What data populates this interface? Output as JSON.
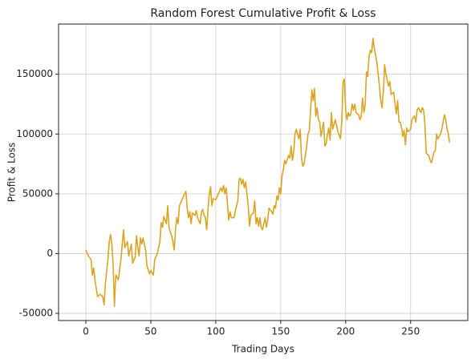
{
  "chart_data": {
    "type": "line",
    "title": "Random Forest Cumulative Profit & Loss",
    "x_label": "Trading Days",
    "y_label": "Profit & Loss",
    "color": "#daa520",
    "grid": true,
    "xlim": [
      -21,
      294
    ],
    "ylim": [
      -56000,
      192000
    ],
    "xticks": [
      0,
      50,
      100,
      150,
      200,
      250
    ],
    "yticks": [
      -50000,
      0,
      50000,
      100000,
      150000
    ],
    "x": [
      0,
      2,
      4,
      5,
      6,
      7,
      9,
      11,
      13,
      14,
      15,
      17,
      18,
      19,
      20,
      21,
      22,
      23,
      25,
      27,
      29,
      30,
      32,
      33,
      35,
      36,
      38,
      39,
      40,
      41,
      42,
      43,
      44,
      46,
      47,
      49,
      50,
      52,
      53,
      55,
      57,
      58,
      59,
      60,
      62,
      63,
      64,
      65,
      66,
      67,
      68,
      69,
      70,
      71,
      72,
      74,
      76,
      77,
      78,
      79,
      80,
      81,
      82,
      84,
      85,
      86,
      88,
      89,
      90,
      91,
      92,
      93,
      94,
      95,
      96,
      97,
      98,
      100,
      102,
      104,
      105,
      106,
      107,
      108,
      110,
      111,
      112,
      114,
      115,
      116,
      117,
      118,
      119,
      120,
      121,
      122,
      123,
      124,
      125,
      126,
      127,
      129,
      130,
      131,
      132,
      133,
      134,
      135,
      136,
      137,
      138,
      139,
      140,
      141,
      143,
      144,
      145,
      146,
      147,
      148,
      149,
      150,
      151,
      152,
      153,
      154,
      156,
      157,
      158,
      159,
      160,
      161,
      162,
      163,
      164,
      165,
      166,
      167,
      168,
      170,
      171,
      172,
      173,
      174,
      175,
      176,
      177,
      178,
      179,
      180,
      181,
      183,
      184,
      185,
      186,
      187,
      188,
      189,
      190,
      191,
      192,
      193,
      194,
      196,
      197,
      198,
      199,
      200,
      201,
      202,
      203,
      204,
      205,
      206,
      207,
      208,
      210,
      211,
      212,
      213,
      214,
      215,
      216,
      217,
      218,
      219,
      220,
      221,
      222,
      224,
      225,
      226,
      227,
      228,
      229,
      230,
      231,
      232,
      233,
      234,
      235,
      237,
      238,
      239,
      240,
      241,
      242,
      243,
      244,
      245,
      246,
      247,
      248,
      250,
      251,
      252,
      253,
      254,
      255,
      256,
      258,
      259,
      260,
      261,
      262,
      264,
      265,
      266,
      267,
      268,
      269,
      270,
      271,
      272,
      273,
      274,
      275,
      276,
      277,
      278,
      279,
      280
    ],
    "values": [
      3000,
      -2000,
      -5000,
      -18000,
      -12000,
      -22000,
      -36000,
      -34000,
      -36000,
      -43000,
      -25000,
      -5000,
      10000,
      16000,
      8000,
      -10000,
      -44000,
      -18000,
      -22000,
      -5000,
      20000,
      5000,
      10000,
      -2000,
      8000,
      -8000,
      -3000,
      15000,
      5000,
      -2000,
      13000,
      8000,
      13000,
      3000,
      -10000,
      -17000,
      -14000,
      -18000,
      -5000,
      0,
      10000,
      26000,
      22000,
      31000,
      25000,
      40000,
      22000,
      18000,
      15000,
      10000,
      3000,
      20000,
      30000,
      25000,
      40000,
      45000,
      50000,
      52000,
      38000,
      30000,
      35000,
      25000,
      34000,
      32000,
      36000,
      30000,
      25000,
      35000,
      37000,
      32000,
      30000,
      20000,
      36000,
      50000,
      56000,
      40000,
      46000,
      45000,
      50000,
      55000,
      52000,
      57000,
      50000,
      55000,
      28000,
      35000,
      30000,
      30000,
      35000,
      40000,
      44000,
      62000,
      63000,
      58000,
      62000,
      55000,
      60000,
      50000,
      40000,
      23000,
      32000,
      34000,
      44000,
      25000,
      30000,
      23000,
      30000,
      22000,
      20000,
      25000,
      30000,
      22000,
      28000,
      38000,
      35000,
      33000,
      40000,
      38000,
      48000,
      45000,
      55000,
      50000,
      65000,
      70000,
      78000,
      75000,
      82000,
      80000,
      90000,
      78000,
      85000,
      100000,
      104000,
      100000,
      96000,
      104000,
      80000,
      73000,
      75000,
      90000,
      100000,
      103000,
      120000,
      137000,
      128000,
      138000,
      115000,
      122000,
      112000,
      110000,
      98000,
      110000,
      90000,
      92000,
      100000,
      105000,
      95000,
      118000,
      104000,
      108000,
      112000,
      107000,
      102000,
      96000,
      110000,
      144000,
      146000,
      120000,
      112000,
      118000,
      115000,
      117000,
      125000,
      120000,
      125000,
      118000,
      116000,
      112000,
      115000,
      130000,
      118000,
      124000,
      152000,
      148000,
      165000,
      170000,
      168000,
      180000,
      172000,
      160000,
      150000,
      140000,
      128000,
      122000,
      135000,
      158000,
      150000,
      145000,
      140000,
      144000,
      133000,
      135000,
      125000,
      117000,
      128000,
      110000,
      110000,
      105000,
      98000,
      103000,
      91000,
      105000,
      102000,
      104000,
      112000,
      114000,
      115000,
      110000,
      120000,
      122000,
      118000,
      122000,
      120000,
      108000,
      84000,
      82000,
      78000,
      76000,
      80000,
      85000,
      86000,
      100000,
      96000,
      98000,
      100000,
      104000,
      110000,
      116000,
      112000,
      105000,
      100000,
      93000
    ]
  }
}
